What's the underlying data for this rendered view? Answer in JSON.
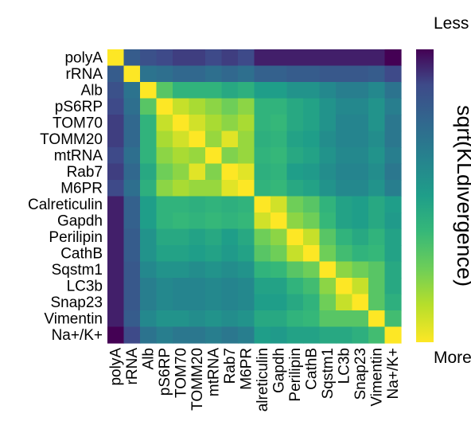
{
  "chart_data": {
    "type": "heatmap",
    "labels": [
      "polyA",
      "rRNA",
      "Alb",
      "pS6RP",
      "TOM70",
      "TOMM20",
      "mtRNA",
      "Rab7",
      "M6PR",
      "Calreticulin",
      "Gapdh",
      "Perilipin",
      "CathB",
      "Sqstm1",
      "LC3b",
      "Snap23",
      "Vimentin",
      "Na+/K+"
    ],
    "col_labels": [
      "polyA",
      "rRNA",
      "Alb",
      "pS6RP",
      "TOM70",
      "TOMM20",
      "mtRNA",
      "Rab7",
      "M6PR",
      "alreticulin",
      "Gapdh",
      "Perilipin",
      "CathB",
      "Sqstm1",
      "LC3b",
      "Snap23",
      "Vimentin",
      "Na+/K+"
    ],
    "colorbar": {
      "title": "sqrt(KLdivergence)",
      "top_label": "Less similar",
      "bottom_label": "More similar",
      "colormap": "viridis",
      "top_color": "#440154",
      "bottom_color": "#fde725",
      "range": [
        0,
        1
      ]
    },
    "values": [
      [
        0.0,
        0.8,
        0.85,
        0.88,
        0.9,
        0.9,
        0.88,
        0.9,
        0.88,
        0.95,
        0.95,
        0.95,
        0.95,
        0.95,
        0.95,
        0.95,
        0.95,
        1.0
      ],
      [
        0.8,
        0.0,
        0.7,
        0.72,
        0.75,
        0.75,
        0.72,
        0.75,
        0.72,
        0.78,
        0.78,
        0.8,
        0.8,
        0.82,
        0.82,
        0.82,
        0.8,
        0.88
      ],
      [
        0.85,
        0.7,
        0.0,
        0.3,
        0.4,
        0.4,
        0.4,
        0.45,
        0.42,
        0.5,
        0.5,
        0.55,
        0.55,
        0.6,
        0.65,
        0.65,
        0.6,
        0.7
      ],
      [
        0.88,
        0.72,
        0.3,
        0.0,
        0.1,
        0.15,
        0.2,
        0.25,
        0.2,
        0.4,
        0.4,
        0.45,
        0.48,
        0.55,
        0.6,
        0.6,
        0.55,
        0.65
      ],
      [
        0.9,
        0.75,
        0.4,
        0.1,
        0.0,
        0.08,
        0.15,
        0.2,
        0.15,
        0.4,
        0.38,
        0.45,
        0.48,
        0.55,
        0.62,
        0.62,
        0.55,
        0.68
      ],
      [
        0.9,
        0.75,
        0.4,
        0.15,
        0.08,
        0.0,
        0.18,
        0.05,
        0.18,
        0.42,
        0.4,
        0.48,
        0.5,
        0.58,
        0.62,
        0.62,
        0.58,
        0.68
      ],
      [
        0.88,
        0.72,
        0.4,
        0.2,
        0.15,
        0.18,
        0.0,
        0.22,
        0.18,
        0.4,
        0.38,
        0.45,
        0.48,
        0.55,
        0.6,
        0.6,
        0.55,
        0.65
      ],
      [
        0.9,
        0.75,
        0.45,
        0.25,
        0.2,
        0.05,
        0.22,
        0.0,
        0.05,
        0.42,
        0.4,
        0.5,
        0.52,
        0.58,
        0.62,
        0.62,
        0.58,
        0.68
      ],
      [
        0.88,
        0.72,
        0.42,
        0.2,
        0.15,
        0.18,
        0.18,
        0.05,
        0.0,
        0.4,
        0.38,
        0.45,
        0.48,
        0.55,
        0.6,
        0.6,
        0.55,
        0.65
      ],
      [
        0.95,
        0.78,
        0.5,
        0.4,
        0.4,
        0.42,
        0.4,
        0.42,
        0.4,
        0.0,
        0.08,
        0.25,
        0.3,
        0.4,
        0.48,
        0.5,
        0.45,
        0.5
      ],
      [
        0.95,
        0.78,
        0.5,
        0.4,
        0.38,
        0.4,
        0.38,
        0.4,
        0.38,
        0.08,
        0.0,
        0.2,
        0.25,
        0.38,
        0.48,
        0.5,
        0.45,
        0.52
      ],
      [
        0.95,
        0.8,
        0.55,
        0.45,
        0.45,
        0.48,
        0.45,
        0.5,
        0.45,
        0.25,
        0.2,
        0.0,
        0.1,
        0.3,
        0.4,
        0.45,
        0.4,
        0.48
      ],
      [
        0.95,
        0.8,
        0.55,
        0.48,
        0.48,
        0.5,
        0.48,
        0.52,
        0.48,
        0.3,
        0.25,
        0.1,
        0.0,
        0.25,
        0.35,
        0.4,
        0.38,
        0.48
      ],
      [
        0.95,
        0.82,
        0.6,
        0.55,
        0.55,
        0.58,
        0.55,
        0.58,
        0.55,
        0.4,
        0.38,
        0.3,
        0.25,
        0.0,
        0.2,
        0.25,
        0.3,
        0.45
      ],
      [
        0.95,
        0.82,
        0.65,
        0.6,
        0.62,
        0.62,
        0.6,
        0.62,
        0.6,
        0.48,
        0.48,
        0.4,
        0.35,
        0.2,
        0.0,
        0.1,
        0.3,
        0.45
      ],
      [
        0.95,
        0.82,
        0.65,
        0.6,
        0.62,
        0.62,
        0.6,
        0.62,
        0.6,
        0.5,
        0.5,
        0.45,
        0.4,
        0.25,
        0.1,
        0.0,
        0.3,
        0.42
      ],
      [
        0.95,
        0.8,
        0.6,
        0.55,
        0.55,
        0.58,
        0.55,
        0.58,
        0.55,
        0.45,
        0.45,
        0.4,
        0.38,
        0.3,
        0.3,
        0.3,
        0.0,
        0.35
      ],
      [
        1.0,
        0.88,
        0.7,
        0.65,
        0.68,
        0.68,
        0.65,
        0.68,
        0.65,
        0.5,
        0.52,
        0.48,
        0.48,
        0.45,
        0.45,
        0.42,
        0.35,
        0.0
      ]
    ]
  }
}
